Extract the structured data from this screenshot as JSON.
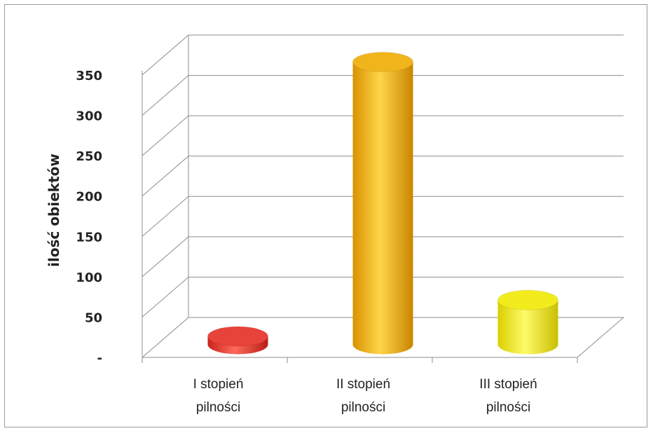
{
  "chart_data": {
    "type": "bar",
    "style": "3d-cylinder",
    "title": "",
    "ylabel": "ilość obiektów",
    "xlabel": "",
    "ylim": [
      0,
      350
    ],
    "yticks": [
      0,
      50,
      100,
      150,
      200,
      250,
      300,
      350
    ],
    "ytick_labels": [
      "-",
      "50",
      "100",
      "150",
      "200",
      "250",
      "300",
      "350"
    ],
    "categories": [
      [
        "I stopień",
        "pilności"
      ],
      [
        "II stopień",
        "pilności"
      ],
      [
        "III stopień",
        "pilności"
      ]
    ],
    "values": [
      10,
      350,
      55
    ],
    "colors": [
      "#e8433a",
      "#f1b51c",
      "#f2ec1c"
    ],
    "grid": true,
    "legend": "none"
  }
}
